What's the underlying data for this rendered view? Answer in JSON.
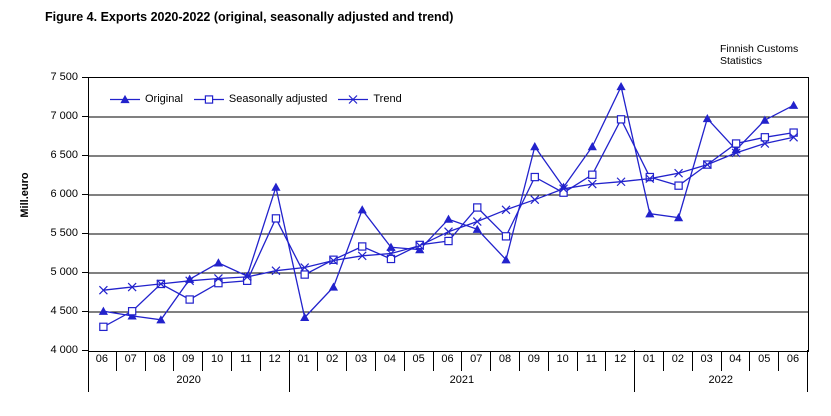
{
  "title": "Figure 4. Exports 2020-2022 (original, seasonally adjusted and trend)",
  "source": {
    "line1": "Finnish Customs",
    "line2": "Statistics"
  },
  "chart_data": {
    "type": "line",
    "title": "Figure 4. Exports 2020-2022 (original, seasonally adjusted and trend)",
    "ylabel": "Mill.euro",
    "xlabel": "",
    "ylim": [
      4000,
      7500
    ],
    "y_tick_step": 500,
    "y_tick_labels_top_to_bottom": [
      "7 500",
      "7 000",
      "6 500",
      "6 000",
      "5 500",
      "5 000",
      "4 500",
      "4 000"
    ],
    "grid": "horizontal",
    "legend_position": "top-left-inside",
    "line_color": "#2222CC",
    "x_groups": [
      {
        "year": "2020",
        "months": [
          "06",
          "07",
          "08",
          "09",
          "10",
          "11",
          "12"
        ]
      },
      {
        "year": "2021",
        "months": [
          "01",
          "02",
          "03",
          "04",
          "05",
          "06",
          "07",
          "08",
          "09",
          "10",
          "11",
          "12"
        ]
      },
      {
        "year": "2022",
        "months": [
          "01",
          "02",
          "03",
          "04",
          "05",
          "06"
        ]
      }
    ],
    "series": [
      {
        "name": "Original",
        "marker": "triangle",
        "values": [
          4510,
          4450,
          4400,
          4920,
          5130,
          4960,
          6100,
          4430,
          4820,
          5810,
          5330,
          5300,
          5690,
          5560,
          5170,
          6620,
          6100,
          6620,
          7390,
          5760,
          5710,
          6980,
          6580,
          6960,
          7150
        ]
      },
      {
        "name": "Seasonally adjusted",
        "marker": "square",
        "values": [
          4310,
          4510,
          4860,
          4660,
          4870,
          4900,
          5700,
          4980,
          5170,
          5340,
          5180,
          5360,
          5410,
          5840,
          5470,
          6230,
          6030,
          6260,
          6970,
          6230,
          6120,
          6390,
          6660,
          6740,
          6800
        ]
      },
      {
        "name": "Trend",
        "marker": "x",
        "values": [
          4780,
          4820,
          4860,
          4900,
          4930,
          4950,
          5030,
          5070,
          5160,
          5220,
          5250,
          5350,
          5530,
          5660,
          5810,
          5940,
          6080,
          6140,
          6170,
          6210,
          6280,
          6390,
          6540,
          6660,
          6740
        ]
      }
    ]
  }
}
